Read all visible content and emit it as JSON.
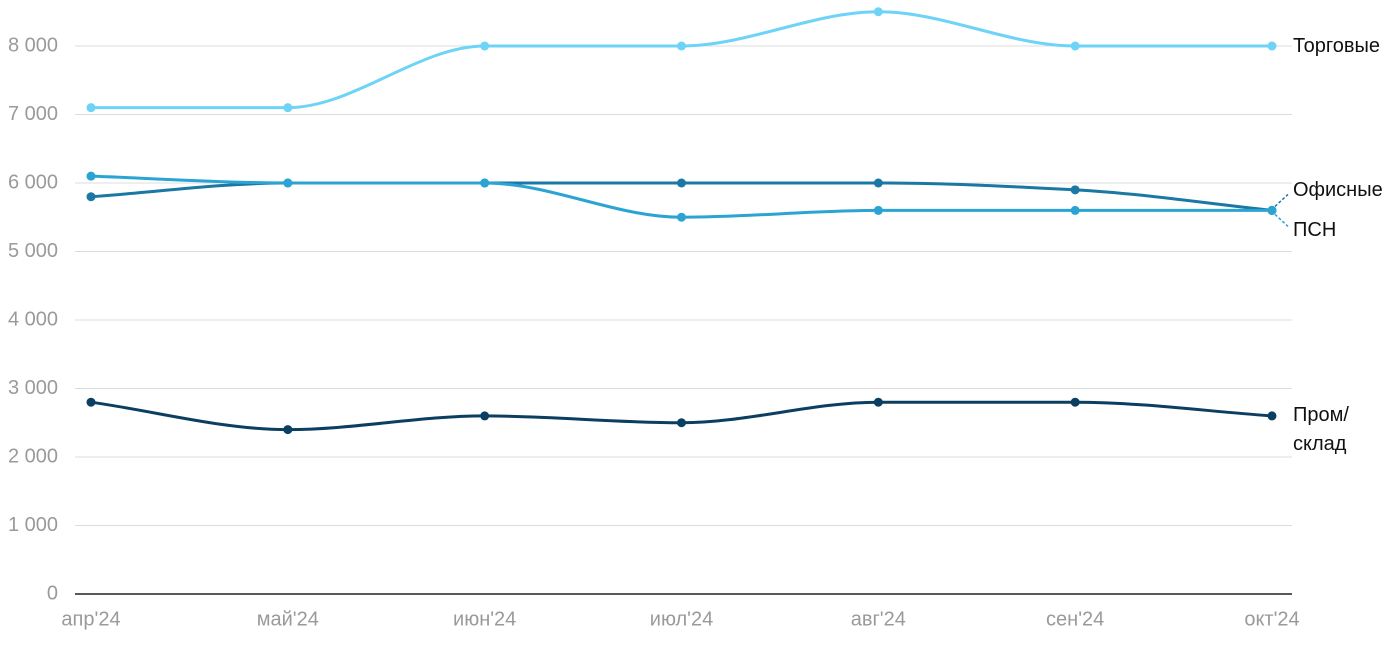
{
  "chart_data": {
    "type": "line",
    "categories": [
      "апр'24",
      "май'24",
      "июн'24",
      "июл'24",
      "авг'24",
      "сен'24",
      "окт'24"
    ],
    "series": [
      {
        "name": "Торговые",
        "color": "#6dd3f7",
        "values": [
          7100,
          7100,
          8000,
          8000,
          8500,
          8000,
          8000
        ]
      },
      {
        "name": "Офисные",
        "color": "#1b77a3",
        "values": [
          5800,
          6000,
          6000,
          6000,
          6000,
          5900,
          5600
        ]
      },
      {
        "name": "ПСН",
        "color": "#2ba4d3",
        "values": [
          6100,
          6000,
          6000,
          5500,
          5600,
          5600,
          5600
        ]
      },
      {
        "name": "Пром/склад",
        "color": "#0b3f62",
        "values": [
          2800,
          2400,
          2600,
          2500,
          2800,
          2800,
          2600
        ]
      }
    ],
    "ylim": [
      0,
      8500
    ],
    "yticks": [
      0,
      {
        "value": 1000,
        "label": "1 000"
      },
      {
        "value": 2000,
        "label": "2 000"
      },
      {
        "value": 3000,
        "label": "3 000"
      },
      {
        "value": 4000,
        "label": "4 000"
      },
      {
        "value": 5000,
        "label": "5 000"
      },
      {
        "value": 6000,
        "label": "6 000"
      },
      {
        "value": 7000,
        "label": "7 000"
      },
      {
        "value": 8000,
        "label": "8 000"
      }
    ],
    "grid": true
  }
}
